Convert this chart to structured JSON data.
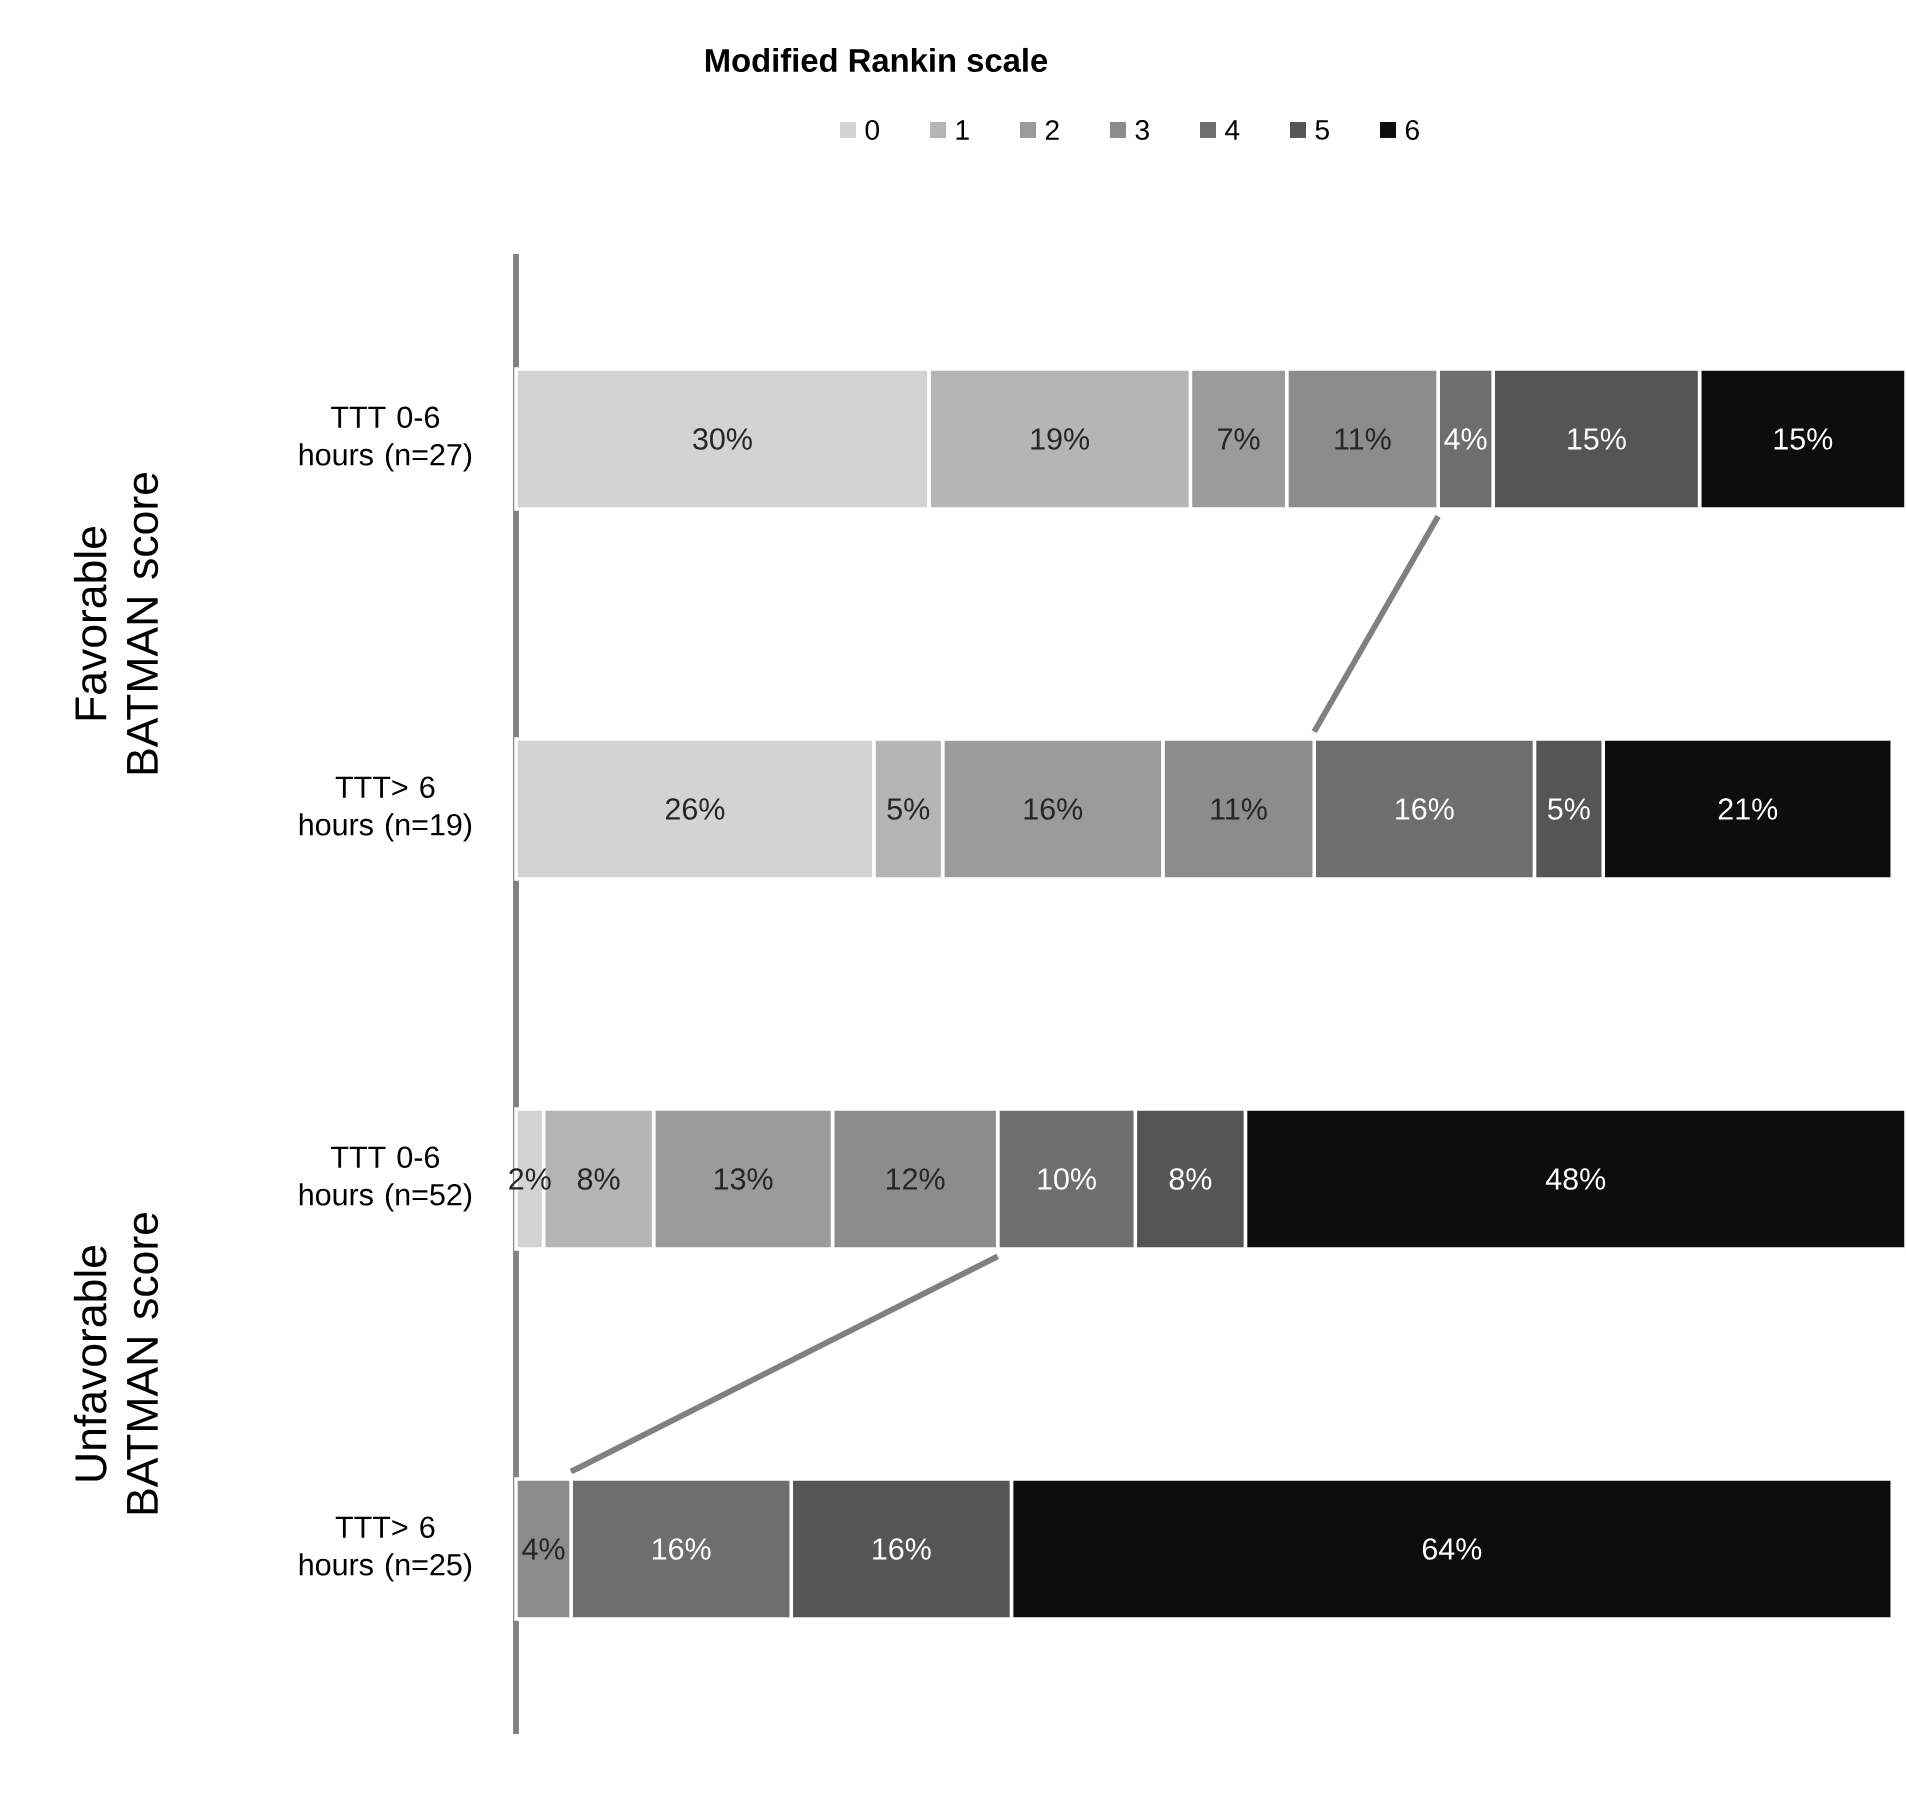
{
  "chart_data": {
    "type": "bar",
    "orientation": "horizontal",
    "stacked": true,
    "legend": "top",
    "legend_title": "Modified Rankin scale",
    "categories": [
      "TTT 0-6 hours (n=27)",
      "TTT> 6 hours (n=19)",
      "TTT 0-6 hours (n=52)",
      "TTT> 6 hours (n=25)"
    ],
    "annotations": [
      "Favorable BATMAN score",
      "Unfavorable BATMAN score"
    ],
    "series": [
      {
        "name": "0",
        "color": "#d3d3d3",
        "values": [
          30,
          26,
          2,
          0
        ],
        "value_labels": [
          "30%",
          "26%",
          "2%",
          null
        ]
      },
      {
        "name": "1",
        "color": "#b5b5b5",
        "values": [
          19,
          5,
          8,
          0
        ],
        "value_labels": [
          "19%",
          "5%",
          "8%",
          null
        ]
      },
      {
        "name": "2",
        "color": "#9b9b9b",
        "values": [
          7,
          16,
          13,
          0
        ],
        "value_labels": [
          "7%",
          "16%",
          "13%",
          null
        ]
      },
      {
        "name": "3",
        "color": "#8c8c8c",
        "values": [
          11,
          11,
          12,
          4
        ],
        "value_labels": [
          "11%",
          "11%",
          "12%",
          "4%"
        ]
      },
      {
        "name": "4",
        "color": "#6e6e6e",
        "values": [
          4,
          16,
          10,
          16
        ],
        "value_labels": [
          "4%",
          "16%",
          "10%",
          "16%"
        ]
      },
      {
        "name": "5",
        "color": "#555555",
        "values": [
          15,
          5,
          8,
          16
        ],
        "value_labels": [
          "15%",
          "5%",
          "8%",
          "16%"
        ]
      },
      {
        "name": "6",
        "color": "#0d0d0d",
        "values": [
          15,
          21,
          48,
          64
        ],
        "value_labels": [
          "15%",
          "21%",
          "48%",
          "64%"
        ]
      }
    ]
  }
}
